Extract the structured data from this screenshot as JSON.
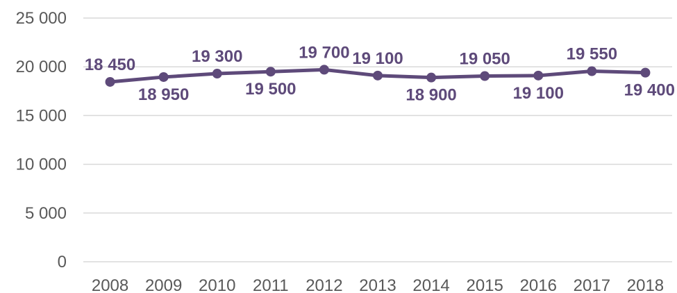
{
  "chart_data": {
    "type": "line",
    "title": "",
    "xlabel": "",
    "ylabel": "",
    "categories": [
      "2008",
      "2009",
      "2010",
      "2011",
      "2012",
      "2013",
      "2014",
      "2015",
      "2016",
      "2017",
      "2018"
    ],
    "series": [
      {
        "values": [
          18450,
          18950,
          19300,
          19500,
          19700,
          19100,
          18900,
          19050,
          19100,
          19550,
          19400
        ],
        "data_labels": [
          "18 450",
          "18 950",
          "19 300",
          "19 500",
          "19 700",
          "19 100",
          "18 900",
          "19 050",
          "19 100",
          "19 550",
          "19 400"
        ],
        "color": "#5e4a7a"
      }
    ],
    "ylim": [
      0,
      25000
    ],
    "yticks": [
      0,
      5000,
      10000,
      15000,
      20000,
      25000
    ],
    "ytick_labels": [
      "0",
      "5 000",
      "10 000",
      "15 000",
      "20 000",
      "25 000"
    ],
    "grid": true,
    "legend": "none",
    "label_position": [
      "above",
      "below",
      "above",
      "below",
      "above",
      "above",
      "below",
      "above",
      "below",
      "above",
      "below"
    ]
  }
}
